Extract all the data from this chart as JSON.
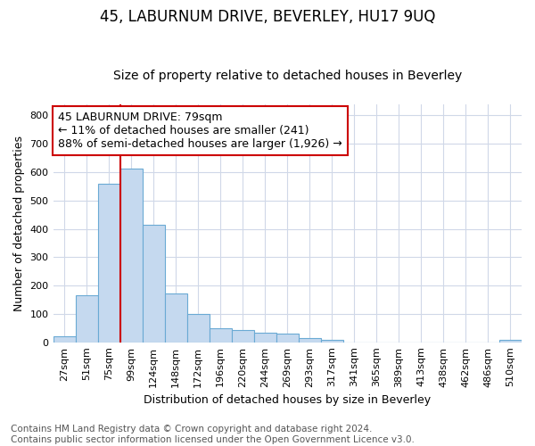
{
  "title": "45, LABURNUM DRIVE, BEVERLEY, HU17 9UQ",
  "subtitle": "Size of property relative to detached houses in Beverley",
  "xlabel": "Distribution of detached houses by size in Beverley",
  "ylabel": "Number of detached properties",
  "categories": [
    "27sqm",
    "51sqm",
    "75sqm",
    "99sqm",
    "124sqm",
    "148sqm",
    "172sqm",
    "196sqm",
    "220sqm",
    "244sqm",
    "269sqm",
    "293sqm",
    "317sqm",
    "341sqm",
    "365sqm",
    "389sqm",
    "413sqm",
    "438sqm",
    "462sqm",
    "486sqm",
    "510sqm"
  ],
  "values": [
    20,
    165,
    560,
    612,
    415,
    172,
    100,
    50,
    42,
    35,
    32,
    14,
    10,
    0,
    0,
    0,
    0,
    0,
    0,
    0,
    8
  ],
  "bar_color": "#c5d9ef",
  "bar_edge_color": "#6aaad4",
  "vline_color": "#cc0000",
  "vline_pos": 2.5,
  "annotation_text": "45 LABURNUM DRIVE: 79sqm\n← 11% of detached houses are smaller (241)\n88% of semi-detached houses are larger (1,926) →",
  "annotation_box_facecolor": "#ffffff",
  "annotation_box_edgecolor": "#cc0000",
  "ylim": [
    0,
    840
  ],
  "yticks": [
    0,
    100,
    200,
    300,
    400,
    500,
    600,
    700,
    800
  ],
  "grid_color": "#d0d8e8",
  "plot_bg_color": "#ffffff",
  "fig_bg_color": "#ffffff",
  "footnote": "Contains HM Land Registry data © Crown copyright and database right 2024.\nContains public sector information licensed under the Open Government Licence v3.0.",
  "title_fontsize": 12,
  "subtitle_fontsize": 10,
  "axis_label_fontsize": 9,
  "tick_fontsize": 8,
  "annotation_fontsize": 9,
  "footnote_fontsize": 7.5
}
